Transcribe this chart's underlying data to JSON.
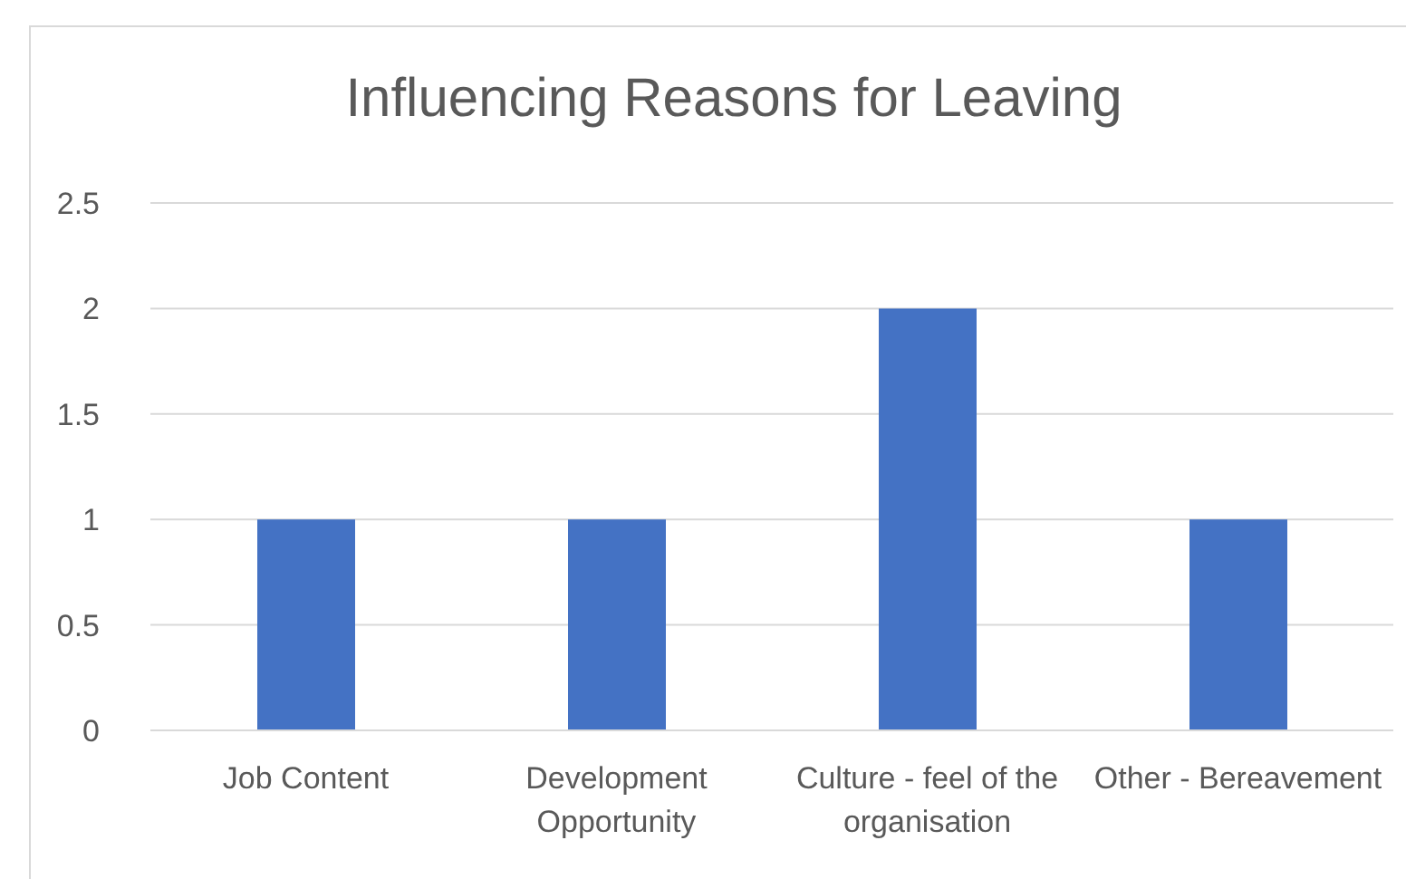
{
  "chart_data": {
    "type": "bar",
    "title": "Influencing Reasons for Leaving",
    "categories": [
      "Job Content",
      "Development Opportunity",
      "Culture - feel of the organisation",
      "Other - Bereavement"
    ],
    "values": [
      1,
      1,
      2,
      1
    ],
    "color": "#4472c4",
    "ylim": [
      0,
      2.5
    ],
    "yticks": [
      0,
      0.5,
      1,
      1.5,
      2,
      2.5
    ],
    "grid": "y",
    "legend": false
  }
}
